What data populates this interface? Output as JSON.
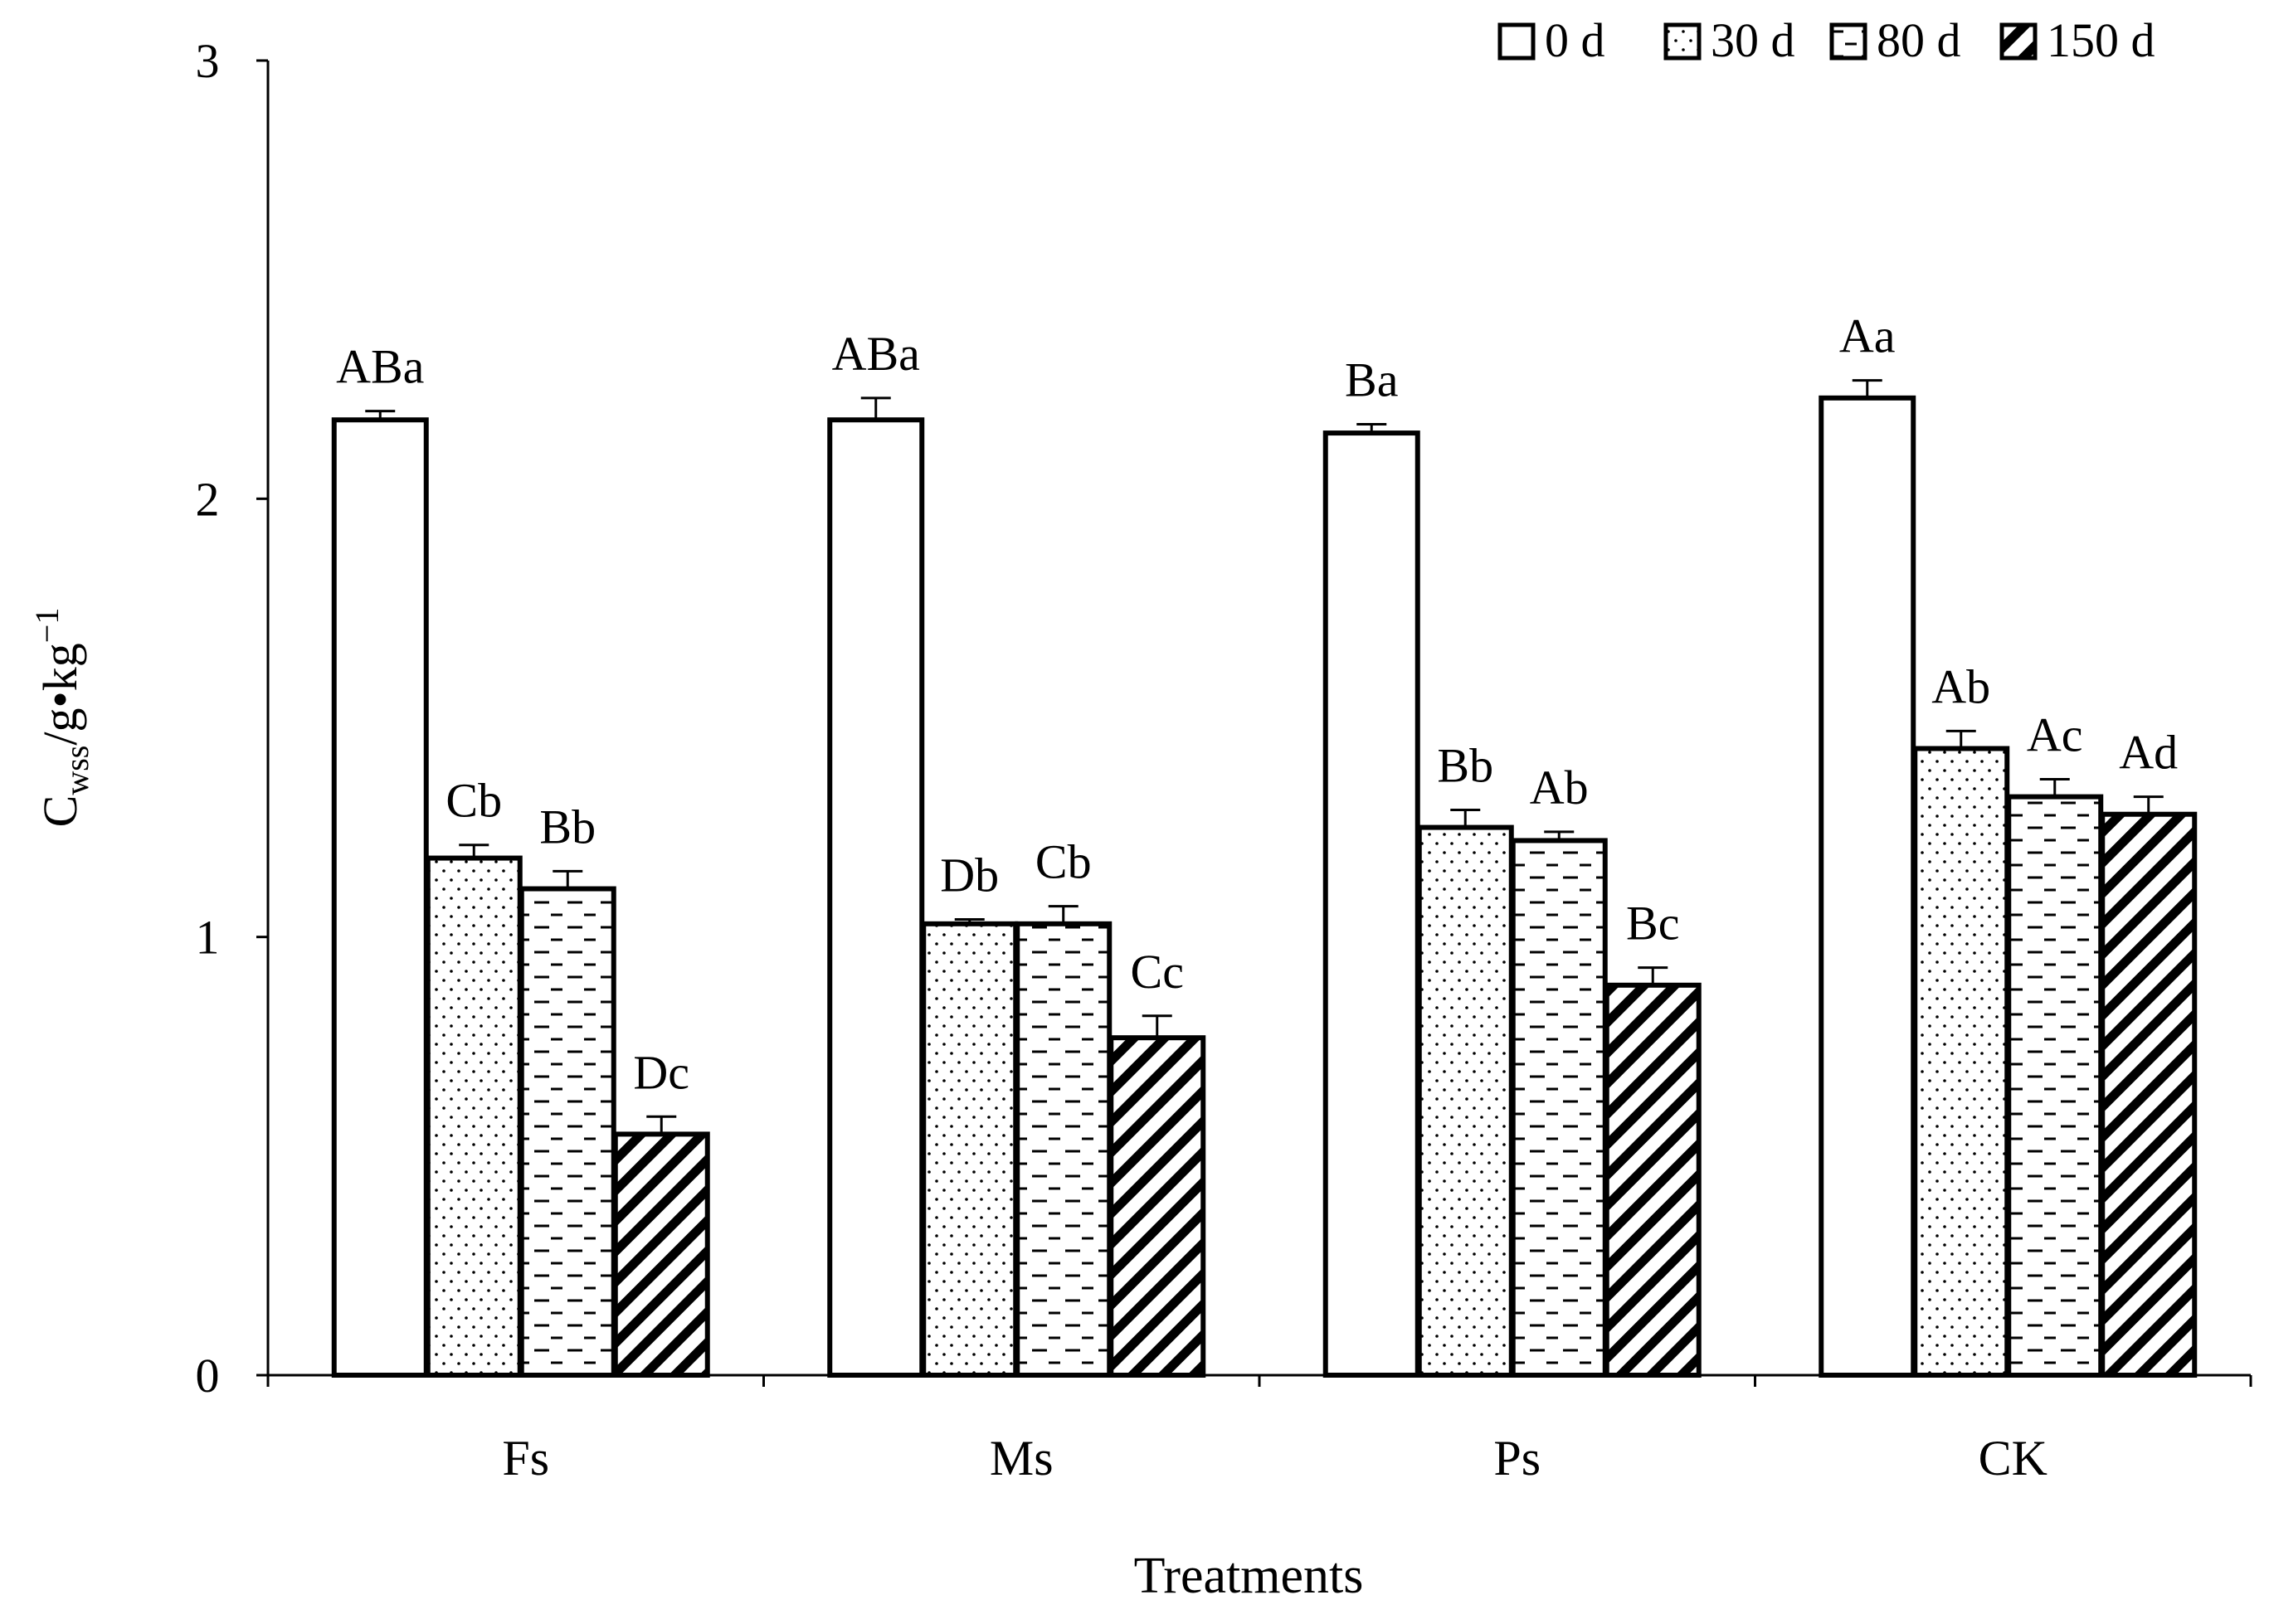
{
  "chart_data": {
    "type": "bar",
    "title": "",
    "xlabel": "Treatments",
    "ylabel": {
      "main": "C",
      "sub": "wss",
      "unit": "/g•kg",
      "sup": "−1"
    },
    "ylim": [
      0,
      3
    ],
    "yticks": [
      "0",
      "1",
      "2",
      "3"
    ],
    "legend_position": "top-right",
    "categories": [
      "Fs",
      "Ms",
      "Ps",
      "CK"
    ],
    "series": [
      {
        "name": "0 d",
        "pattern": "none",
        "values": [
          2.18,
          2.18,
          2.15,
          2.23
        ],
        "errors": [
          0.02,
          0.05,
          0.02,
          0.04
        ],
        "labels": [
          "ABa",
          "ABa",
          "Ba",
          "Aa"
        ]
      },
      {
        "name": "30 d",
        "pattern": "dots",
        "values": [
          1.18,
          1.03,
          1.25,
          1.43
        ],
        "errors": [
          0.03,
          0.01,
          0.04,
          0.04
        ],
        "labels": [
          "Cb",
          "Db",
          "Bb",
          "Ab"
        ]
      },
      {
        "name": "80 d",
        "pattern": "dashes",
        "values": [
          1.11,
          1.03,
          1.22,
          1.32
        ],
        "errors": [
          0.04,
          0.04,
          0.02,
          0.04
        ],
        "labels": [
          "Bb",
          "Cb",
          "Ab",
          "Ac"
        ]
      },
      {
        "name": "150 d",
        "pattern": "diagonal",
        "values": [
          0.55,
          0.77,
          0.89,
          1.28
        ],
        "errors": [
          0.04,
          0.05,
          0.04,
          0.04
        ],
        "labels": [
          "Dc",
          "Cc",
          "Bc",
          "Ad"
        ]
      }
    ]
  }
}
